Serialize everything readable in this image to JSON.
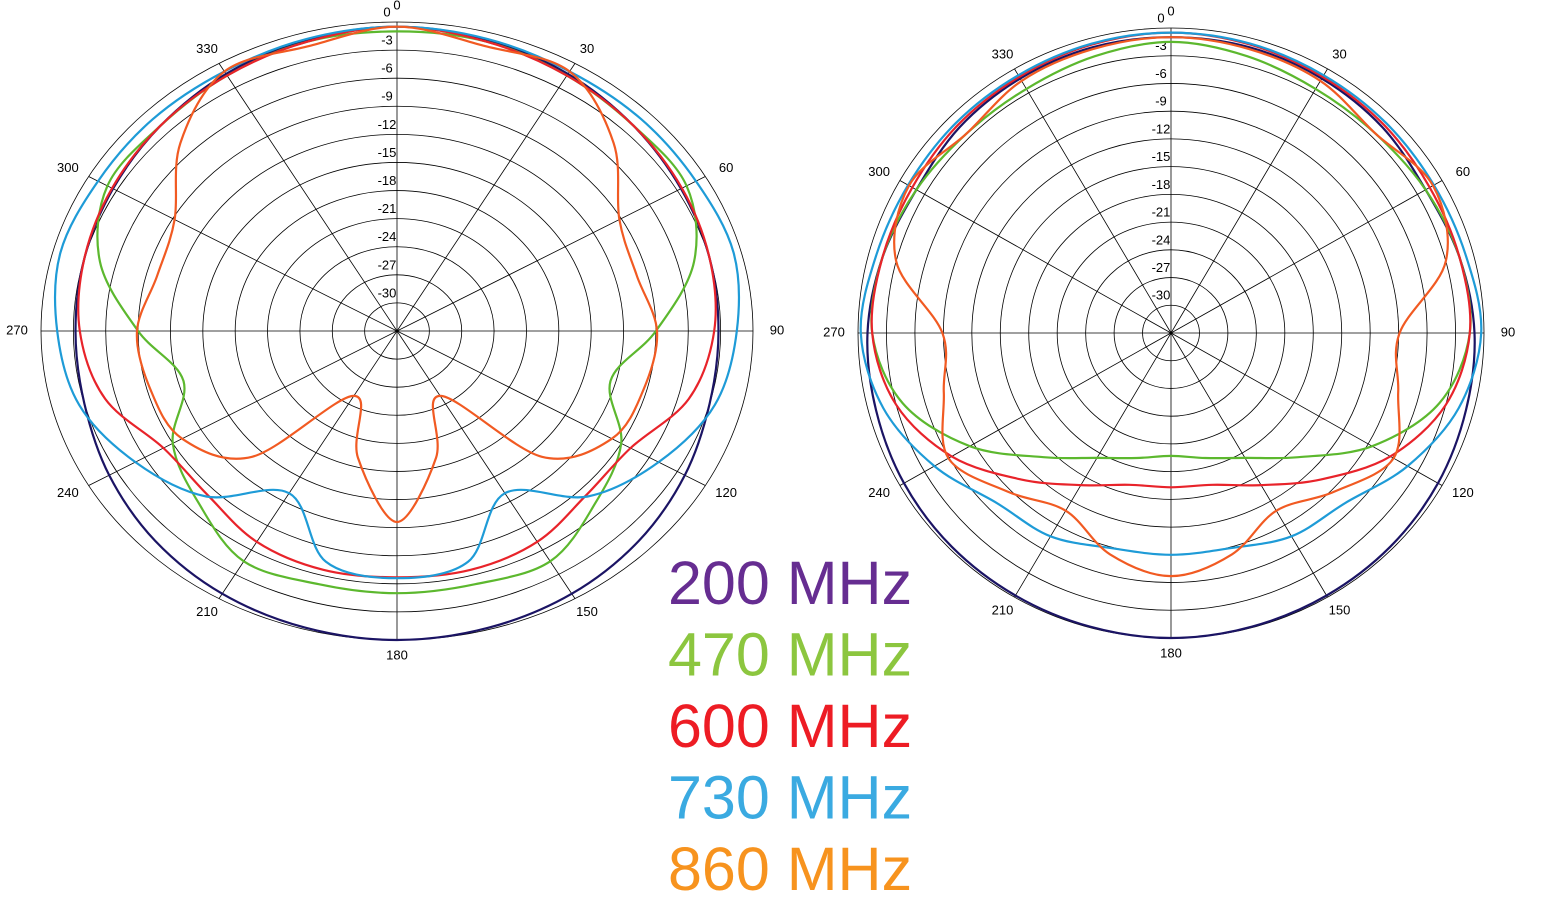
{
  "chart_data": [
    {
      "type": "polar",
      "x": [
        0,
        15,
        30,
        45,
        60,
        75,
        90,
        105,
        120,
        135,
        150,
        165,
        180,
        195,
        210,
        225,
        240,
        255,
        270,
        285,
        300,
        315,
        330,
        345
      ],
      "rlim": [
        -33,
        0
      ],
      "rticks": [
        0,
        -3,
        -6,
        -9,
        -12,
        -15,
        -18,
        -21,
        -24,
        -27,
        -30
      ],
      "thetaticks": [
        0,
        30,
        60,
        90,
        120,
        150,
        180,
        210,
        240,
        270,
        300,
        330
      ],
      "series": [
        {
          "name": "200 MHz",
          "color": "#1b1464",
          "label_color": "#662d91",
          "values": [
            -0.5,
            -0.8,
            -1.3,
            -2,
            -2.6,
            -3,
            -3.2,
            -3,
            -2.2,
            -1.3,
            -0.6,
            -0.2,
            0,
            -0.2,
            -0.6,
            -1.3,
            -2.2,
            -3,
            -3.2,
            -3,
            -2.6,
            -2,
            -1.3,
            -0.8
          ]
        },
        {
          "name": "470 MHz",
          "color": "#5cb82e",
          "label_color": "#8cc63f",
          "values": [
            -1,
            -1,
            -1.5,
            -2,
            -2,
            -4.5,
            -9,
            -12.5,
            -9,
            -7,
            -4.6,
            -5,
            -5,
            -5,
            -4.6,
            -7,
            -9,
            -12.5,
            -9,
            -4.5,
            -2,
            -2,
            -1.5,
            -1
          ]
        },
        {
          "name": "600 MHz",
          "color": "#e8232a",
          "label_color": "#ed1c24",
          "values": [
            -0.5,
            -1,
            -1.5,
            -2,
            -2.5,
            -3,
            -3.6,
            -5,
            -8,
            -8.2,
            -7,
            -6.6,
            -6.7,
            -6.6,
            -7,
            -8.2,
            -8,
            -5,
            -3.6,
            -3,
            -2.5,
            -2,
            -1.5,
            -1
          ]
        },
        {
          "name": "730 MHz",
          "color": "#1e9bd7",
          "label_color": "#3aaae1",
          "values": [
            -0.5,
            -0.7,
            -1,
            -1,
            -1,
            -0.7,
            -1.5,
            -2.5,
            -5,
            -8,
            -13,
            -7.5,
            -6.6,
            -7.5,
            -13,
            -8,
            -5,
            -2.5,
            -1.5,
            -0.7,
            -1,
            -1,
            -1,
            -0.7
          ]
        },
        {
          "name": "860 MHz",
          "color": "#f15a22",
          "label_color": "#f7931e",
          "values": [
            -0.5,
            -1.5,
            -1,
            -4.6,
            -9.2,
            -10,
            -8.9,
            -9.3,
            -10,
            -14,
            -25,
            -19,
            -12.6,
            -19,
            -25,
            -14,
            -10,
            -9.3,
            -8.9,
            -10,
            -9.2,
            -4.6,
            -1,
            -1.5
          ]
        }
      ]
    },
    {
      "type": "polar",
      "x": [
        0,
        15,
        30,
        45,
        60,
        75,
        90,
        105,
        120,
        135,
        150,
        165,
        180,
        195,
        210,
        225,
        240,
        255,
        270,
        285,
        300,
        315,
        330,
        345
      ],
      "rlim": [
        -33,
        0
      ],
      "rticks": [
        0,
        -3,
        -6,
        -9,
        -12,
        -15,
        -18,
        -21,
        -24,
        -27,
        -30
      ],
      "thetaticks": [
        0,
        30,
        60,
        90,
        120,
        150,
        180,
        210,
        240,
        270,
        300,
        330
      ],
      "series": [
        {
          "color": "#1b1464",
          "values": [
            -1,
            -1,
            -1.2,
            -1.5,
            -2,
            -1.5,
            -1,
            -0.8,
            -0.5,
            -0.3,
            -0.2,
            -0.1,
            0,
            -0.1,
            -0.2,
            -0.3,
            -0.5,
            -0.8,
            -1,
            -1.5,
            -2,
            -1.5,
            -1.2,
            -1
          ]
        },
        {
          "color": "#5cb82e",
          "values": [
            -1.5,
            -2,
            -2.5,
            -2.5,
            -2,
            -1.5,
            -1.5,
            -3.7,
            -8.5,
            -14,
            -17.4,
            -19,
            -19.7,
            -19,
            -17.4,
            -14,
            -8.5,
            -3.7,
            -1.5,
            -1.5,
            -2,
            -2.5,
            -2.5,
            -2
          ]
        },
        {
          "color": "#e8232a",
          "values": [
            -0.5,
            -0.7,
            -1,
            -1.2,
            -1.5,
            -1.5,
            -1.5,
            -3,
            -6.3,
            -10.6,
            -14,
            -16,
            -16.3,
            -16,
            -14,
            -10.6,
            -6.3,
            -3,
            -1.5,
            -1.5,
            -1.5,
            -1.2,
            -1,
            -0.7
          ]
        },
        {
          "color": "#1e9bd7",
          "values": [
            -0.5,
            -0.6,
            -0.8,
            -0.9,
            -1,
            -0.8,
            -0.3,
            -1.6,
            -4.2,
            -7,
            -7.6,
            -8.9,
            -9,
            -8.9,
            -7.6,
            -7,
            -4.2,
            -1.6,
            -0.3,
            -0.8,
            -1,
            -0.9,
            -0.8,
            -0.6
          ]
        },
        {
          "color": "#f15a22",
          "values": [
            -1,
            -1.2,
            -1.5,
            -2.5,
            -1.1,
            -3,
            -8.9,
            -8.2,
            -5.9,
            -8.7,
            -10.8,
            -8.2,
            -6.7,
            -8.2,
            -10.8,
            -8.7,
            -5.9,
            -8.2,
            -8.9,
            -3,
            -1.1,
            -2.5,
            -1.5,
            -1.2
          ]
        }
      ]
    }
  ]
}
